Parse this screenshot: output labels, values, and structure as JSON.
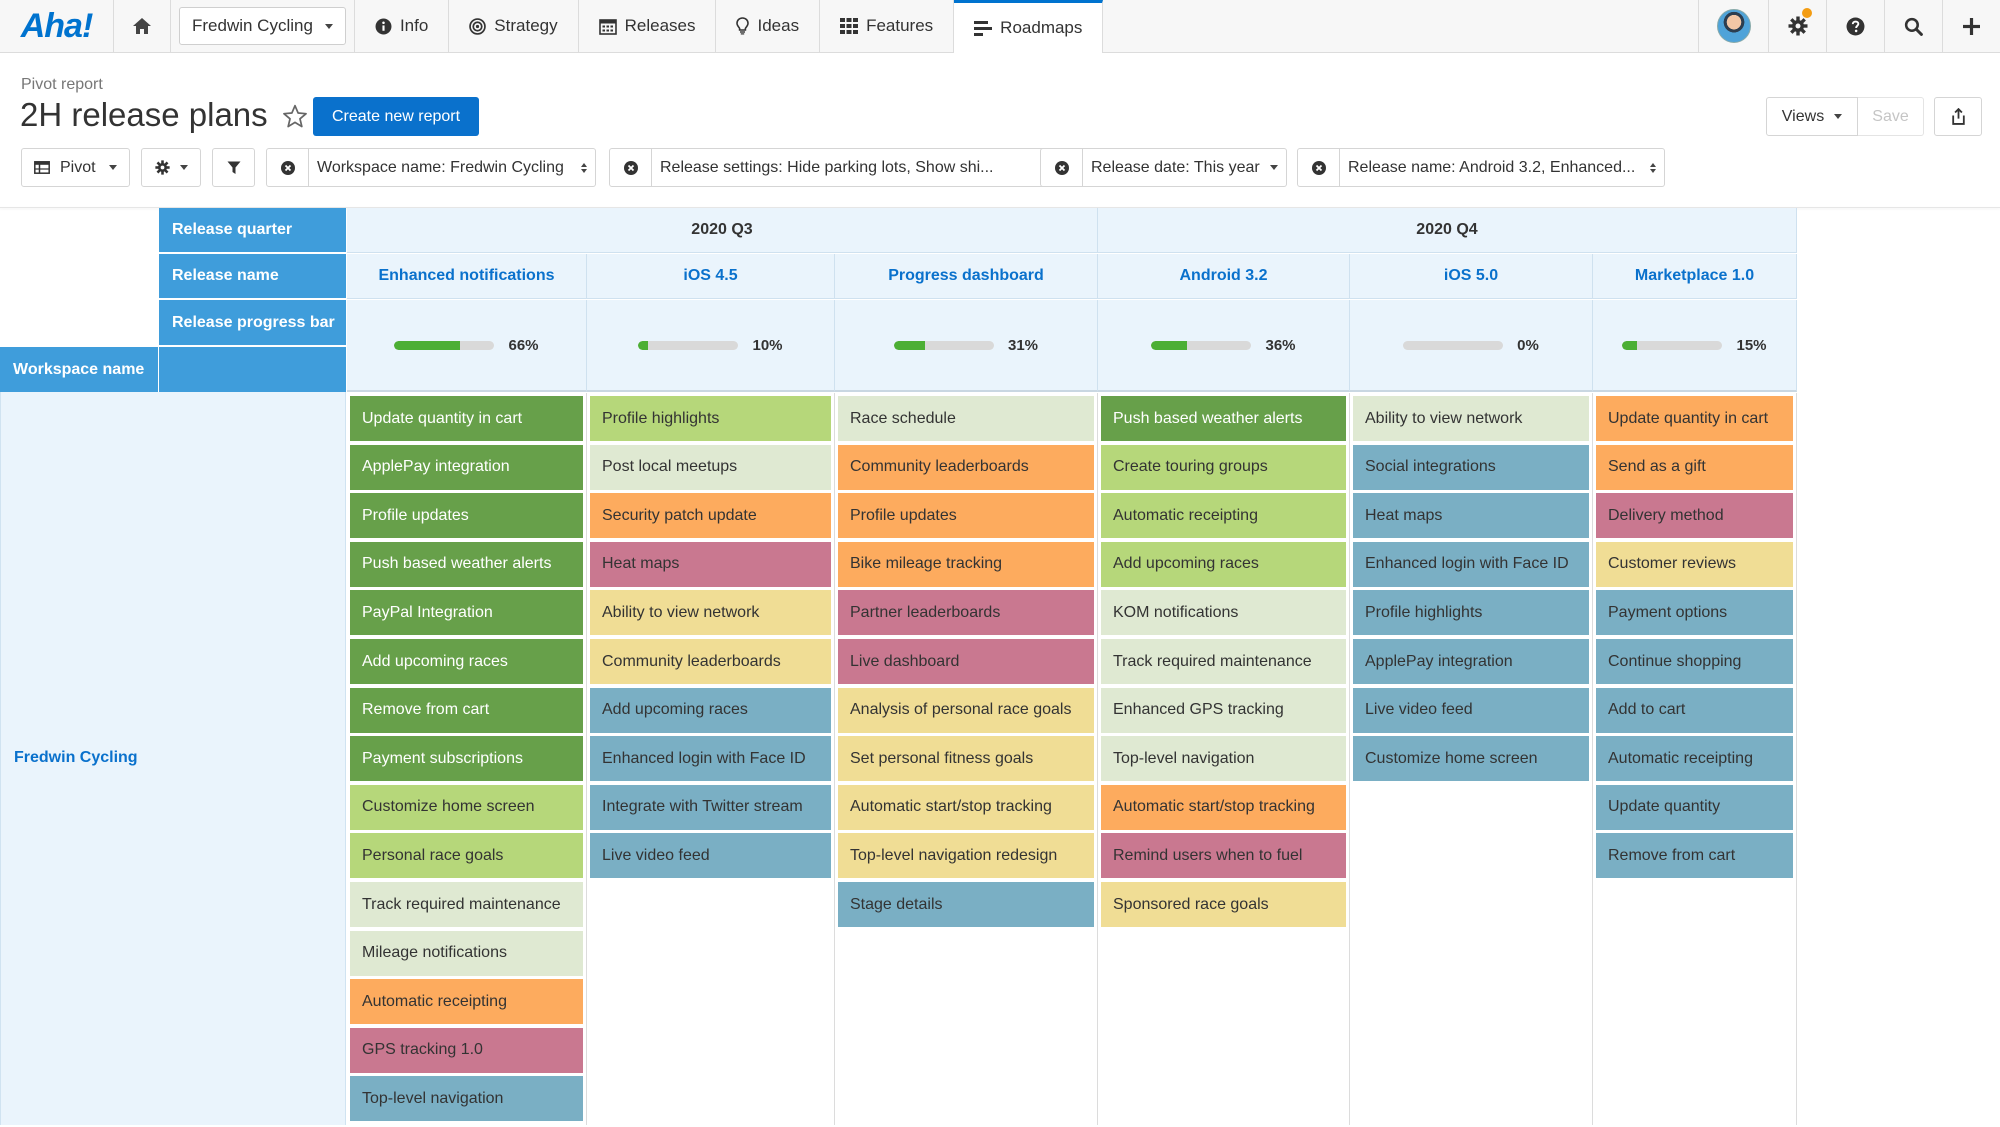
{
  "nav": {
    "logo": "Aha!",
    "workspace": "Fredwin Cycling",
    "items": [
      {
        "label": "Info",
        "icon": "info-icon"
      },
      {
        "label": "Strategy",
        "icon": "target-icon"
      },
      {
        "label": "Releases",
        "icon": "calendar-icon"
      },
      {
        "label": "Ideas",
        "icon": "lightbulb-icon"
      },
      {
        "label": "Features",
        "icon": "grid-icon"
      },
      {
        "label": "Roadmaps",
        "icon": "roadmap-icon"
      }
    ],
    "active": "Roadmaps"
  },
  "report": {
    "breadcrumb": "Pivot report",
    "title": "2H release plans",
    "create_label": "Create new report",
    "views_label": "Views",
    "save_label": "Save"
  },
  "toolbar": {
    "pivot_label": "Pivot",
    "filters": [
      "Workspace name: Fredwin Cycling",
      "Release settings: Hide parking lots, Show shi...",
      "Release date: This year",
      "Release name: Android 3.2, Enhanced..."
    ]
  },
  "table": {
    "row_headers": [
      "Release quarter",
      "Release name",
      "Release progress bar"
    ],
    "workspace_header": "Workspace name",
    "workspace": "Fredwin Cycling",
    "quarters": [
      "2020 Q3",
      "2020 Q4"
    ],
    "releases": [
      {
        "name": "Enhanced notifications",
        "progress": 66,
        "progress_label": "66%",
        "features": [
          {
            "t": "Update quantity in cart",
            "c": "dg"
          },
          {
            "t": "ApplePay integration",
            "c": "dg"
          },
          {
            "t": "Profile updates",
            "c": "dg"
          },
          {
            "t": "Push based weather alerts",
            "c": "dg"
          },
          {
            "t": "PayPal Integration",
            "c": "dg"
          },
          {
            "t": "Add upcoming races",
            "c": "dg"
          },
          {
            "t": "Remove from cart",
            "c": "dg"
          },
          {
            "t": "Payment subscriptions",
            "c": "dg"
          },
          {
            "t": "Customize home screen",
            "c": "lg"
          },
          {
            "t": "Personal race goals",
            "c": "lg"
          },
          {
            "t": "Track required maintenance",
            "c": "pg"
          },
          {
            "t": "Mileage notifications",
            "c": "pg"
          },
          {
            "t": "Automatic receipting",
            "c": "or"
          },
          {
            "t": "GPS tracking 1.0",
            "c": "pk"
          },
          {
            "t": "Top-level navigation",
            "c": "bl"
          }
        ]
      },
      {
        "name": "iOS 4.5",
        "progress": 10,
        "progress_label": "10%",
        "features": [
          {
            "t": "Profile highlights",
            "c": "lg"
          },
          {
            "t": "Post local meetups",
            "c": "pg"
          },
          {
            "t": "Security patch update",
            "c": "or"
          },
          {
            "t": "Heat maps",
            "c": "pk"
          },
          {
            "t": "Ability to view network",
            "c": "ye"
          },
          {
            "t": "Community leaderboards",
            "c": "ye"
          },
          {
            "t": "Add upcoming races",
            "c": "bl"
          },
          {
            "t": "Enhanced login with Face ID",
            "c": "bl"
          },
          {
            "t": "Integrate with Twitter stream",
            "c": "bl"
          },
          {
            "t": "Live video feed",
            "c": "bl"
          }
        ]
      },
      {
        "name": "Progress dashboard",
        "progress": 31,
        "progress_label": "31%",
        "features": [
          {
            "t": "Race schedule",
            "c": "pg"
          },
          {
            "t": "Community leaderboards",
            "c": "or"
          },
          {
            "t": "Profile updates",
            "c": "or"
          },
          {
            "t": "Bike mileage tracking",
            "c": "or"
          },
          {
            "t": "Partner leaderboards",
            "c": "pk"
          },
          {
            "t": "Live dashboard",
            "c": "pk"
          },
          {
            "t": "Analysis of personal race goals",
            "c": "ye"
          },
          {
            "t": "Set personal fitness goals",
            "c": "ye"
          },
          {
            "t": "Automatic start/stop tracking",
            "c": "ye"
          },
          {
            "t": "Top-level navigation redesign",
            "c": "ye"
          },
          {
            "t": "Stage details",
            "c": "bl"
          }
        ]
      },
      {
        "name": "Android 3.2",
        "progress": 36,
        "progress_label": "36%",
        "features": [
          {
            "t": "Push based weather alerts",
            "c": "dg"
          },
          {
            "t": "Create touring groups",
            "c": "lg"
          },
          {
            "t": "Automatic receipting",
            "c": "lg"
          },
          {
            "t": "Add upcoming races",
            "c": "lg"
          },
          {
            "t": "KOM notifications",
            "c": "pg"
          },
          {
            "t": "Track required maintenance",
            "c": "pg"
          },
          {
            "t": "Enhanced GPS tracking",
            "c": "pg"
          },
          {
            "t": "Top-level navigation",
            "c": "pg"
          },
          {
            "t": "Automatic start/stop tracking",
            "c": "or"
          },
          {
            "t": "Remind users when to fuel",
            "c": "pk"
          },
          {
            "t": "Sponsored race goals",
            "c": "ye"
          }
        ]
      },
      {
        "name": "iOS 5.0",
        "progress": 0,
        "progress_label": "0%",
        "features": [
          {
            "t": "Ability to view network",
            "c": "pg"
          },
          {
            "t": "Social integrations",
            "c": "bl"
          },
          {
            "t": "Heat maps",
            "c": "bl"
          },
          {
            "t": "Enhanced login with Face ID",
            "c": "bl"
          },
          {
            "t": "Profile highlights",
            "c": "bl"
          },
          {
            "t": "ApplePay integration",
            "c": "bl"
          },
          {
            "t": "Live video feed",
            "c": "bl"
          },
          {
            "t": "Customize home screen",
            "c": "bl"
          }
        ]
      },
      {
        "name": "Marketplace 1.0",
        "progress": 15,
        "progress_label": "15%",
        "features": [
          {
            "t": "Update quantity in cart",
            "c": "or"
          },
          {
            "t": "Send as a gift",
            "c": "or"
          },
          {
            "t": "Delivery method",
            "c": "pk"
          },
          {
            "t": "Customer reviews",
            "c": "ye"
          },
          {
            "t": "Payment options",
            "c": "bl"
          },
          {
            "t": "Continue shopping",
            "c": "bl"
          },
          {
            "t": "Add to cart",
            "c": "bl"
          },
          {
            "t": "Automatic receipting",
            "c": "bl"
          },
          {
            "t": "Update quantity",
            "c": "bl"
          },
          {
            "t": "Remove from cart",
            "c": "bl"
          }
        ]
      }
    ]
  }
}
